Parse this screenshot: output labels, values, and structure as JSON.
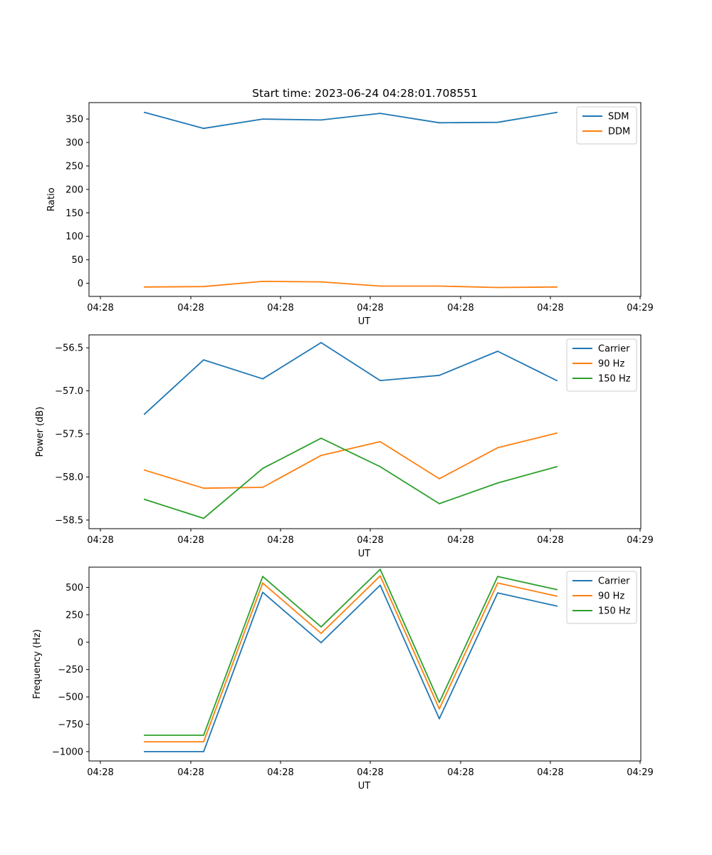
{
  "colors": {
    "blue": "#1f77b4",
    "orange": "#ff7f0e",
    "green": "#2ca02c"
  },
  "chart_data": [
    {
      "type": "line",
      "title": "Start time: 2023-06-24 04:28:01.708551",
      "xlabel": "UT",
      "ylabel": "Ratio",
      "xticks": [
        "04:28",
        "04:28",
        "04:28",
        "04:28",
        "04:28",
        "04:28",
        "04:28"
      ],
      "xticks_last": "04:29",
      "yticks": [
        "0",
        "50",
        "100",
        "150",
        "200",
        "250",
        "300",
        "350"
      ],
      "ytick_values": [
        0,
        50,
        100,
        150,
        200,
        250,
        300,
        350
      ],
      "ylim": [
        -28,
        385
      ],
      "legend": "upper right",
      "series": [
        {
          "name": "SDM",
          "color": "#1f77b4",
          "values": [
            364,
            330,
            350,
            348,
            362,
            342,
            343,
            364
          ]
        },
        {
          "name": "DDM",
          "color": "#ff7f0e",
          "values": [
            -8,
            -7,
            4,
            3,
            -6,
            -6,
            -9,
            -8
          ]
        }
      ]
    },
    {
      "type": "line",
      "title": "",
      "xlabel": "UT",
      "ylabel": "Power (dB)",
      "xticks": [
        "04:28",
        "04:28",
        "04:28",
        "04:28",
        "04:28",
        "04:28",
        "04:28"
      ],
      "xticks_last": "04:29",
      "yticks": [
        "−58.5",
        "−58.0",
        "−57.5",
        "−57.0",
        "−56.5"
      ],
      "ytick_values": [
        -58.5,
        -58.0,
        -57.5,
        -57.0,
        -56.5
      ],
      "ylim": [
        -58.6,
        -56.35
      ],
      "legend": "upper right",
      "series": [
        {
          "name": "Carrier",
          "color": "#1f77b4",
          "values": [
            -57.27,
            -56.64,
            -56.86,
            -56.44,
            -56.88,
            -56.82,
            -56.54,
            -56.88
          ]
        },
        {
          "name": "90 Hz",
          "color": "#ff7f0e",
          "values": [
            -57.92,
            -58.13,
            -58.12,
            -57.75,
            -57.59,
            -58.02,
            -57.66,
            -57.49
          ]
        },
        {
          "name": "150 Hz",
          "color": "#2ca02c",
          "values": [
            -58.26,
            -58.48,
            -57.9,
            -57.55,
            -57.88,
            -58.31,
            -58.07,
            -57.88
          ]
        }
      ]
    },
    {
      "type": "line",
      "title": "",
      "xlabel": "UT",
      "ylabel": "Frequency (Hz)",
      "xticks": [
        "04:28",
        "04:28",
        "04:28",
        "04:28",
        "04:28",
        "04:28",
        "04:28"
      ],
      "xticks_last": "04:29",
      "yticks": [
        "−1000",
        "−750",
        "−500",
        "−250",
        "0",
        "250",
        "500"
      ],
      "ytick_values": [
        -1000,
        -750,
        -500,
        -250,
        0,
        250,
        500
      ],
      "ylim": [
        -1085,
        685
      ],
      "legend": "upper right",
      "series": [
        {
          "name": "Carrier",
          "color": "#1f77b4",
          "values": [
            -1000,
            -1000,
            455,
            -5,
            520,
            -700,
            450,
            330
          ]
        },
        {
          "name": "90 Hz",
          "color": "#ff7f0e",
          "values": [
            -910,
            -910,
            540,
            80,
            605,
            -610,
            540,
            420
          ]
        },
        {
          "name": "150 Hz",
          "color": "#2ca02c",
          "values": [
            -850,
            -850,
            600,
            140,
            665,
            -550,
            600,
            480
          ]
        }
      ]
    }
  ]
}
